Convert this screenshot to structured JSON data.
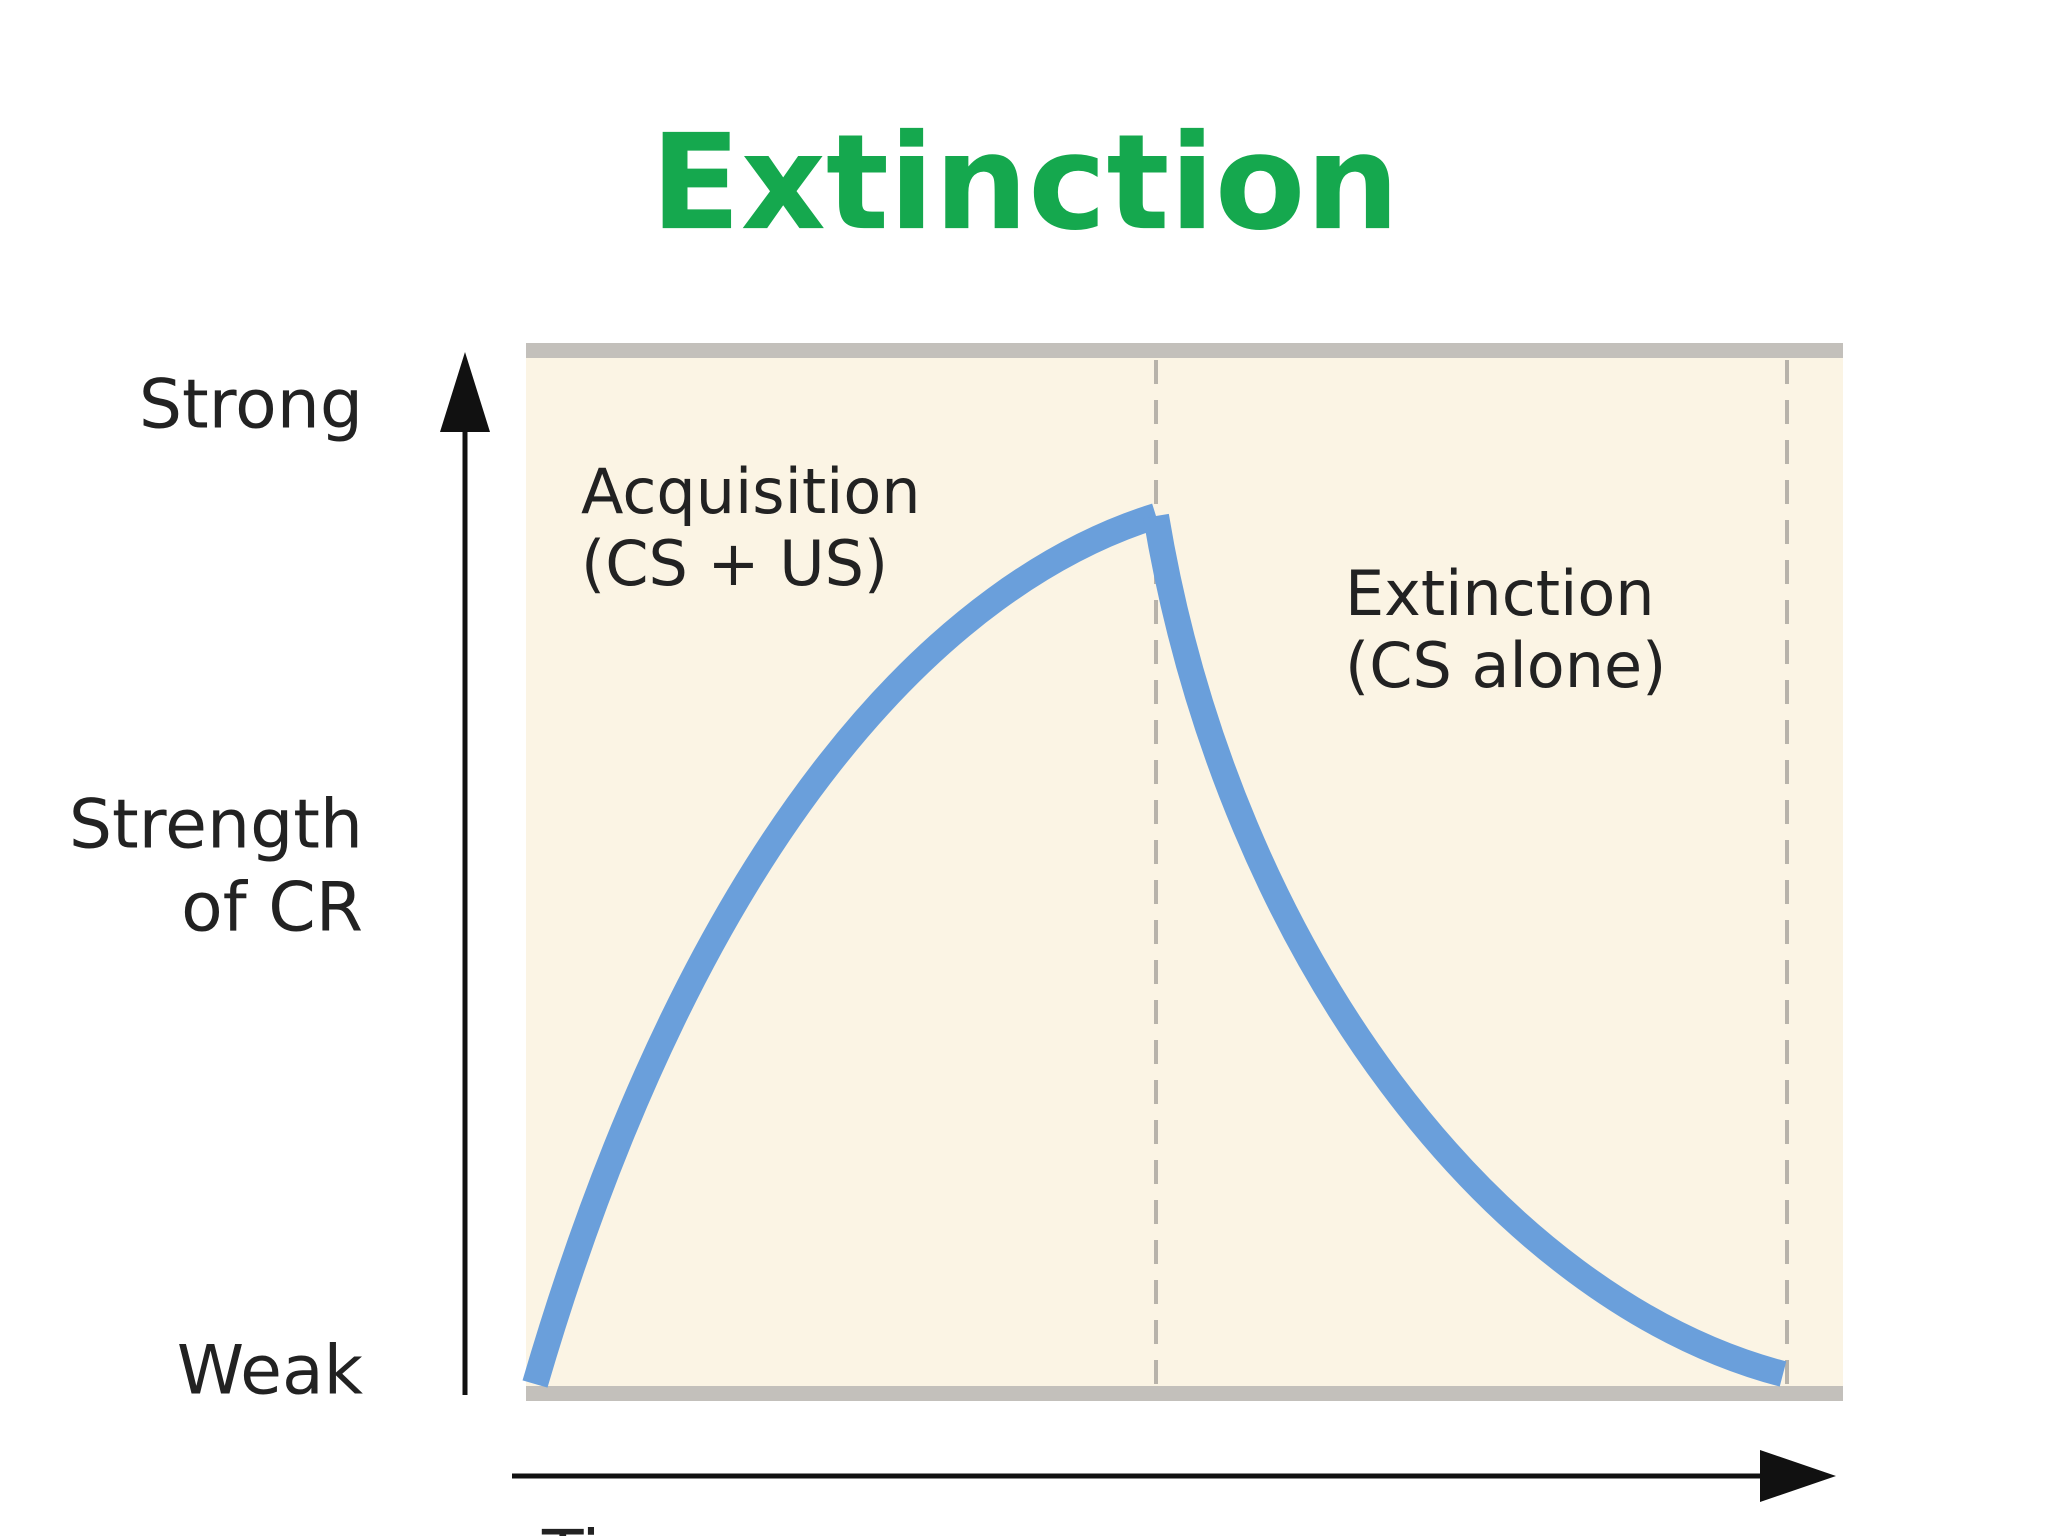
{
  "title": "Extinction",
  "y_axis": {
    "top": "Strong",
    "label": [
      "Strength",
      "of CR"
    ],
    "bottom": "Weak"
  },
  "x_axis": {
    "label": "Time"
  },
  "phases": [
    {
      "name": "Acquisition",
      "condition": "(CS + US)"
    },
    {
      "name": "Extinction",
      "condition": "(CS alone)"
    }
  ]
}
